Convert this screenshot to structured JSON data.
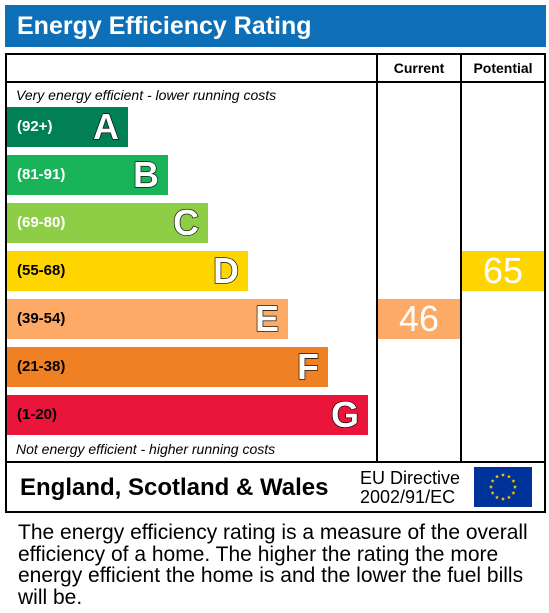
{
  "title": "Energy Efficiency Rating",
  "columns": {
    "current": "Current",
    "potential": "Potential"
  },
  "top_caption": "Very energy efficient - lower running costs",
  "bottom_caption": "Not energy efficient - higher running costs",
  "bands": [
    {
      "range": "(92+)",
      "letter": "A",
      "color": "#008054"
    },
    {
      "range": "(81-91)",
      "letter": "B",
      "color": "#19b459"
    },
    {
      "range": "(69-80)",
      "letter": "C",
      "color": "#8dce46"
    },
    {
      "range": "(55-68)",
      "letter": "D",
      "color": "#ffd500"
    },
    {
      "range": "(39-54)",
      "letter": "E",
      "color": "#fcaa65"
    },
    {
      "range": "(21-38)",
      "letter": "F",
      "color": "#ef8023"
    },
    {
      "range": "(1-20)",
      "letter": "G",
      "color": "#e9153b"
    }
  ],
  "current": {
    "value": "46",
    "band": "E",
    "color": "#fcaa65"
  },
  "potential": {
    "value": "65",
    "band": "D",
    "color": "#ffd500"
  },
  "footer": {
    "region": "England, Scotland & Wales",
    "directive_line1": "EU Directive",
    "directive_line2": "2002/91/EC"
  },
  "description": "The energy efficiency rating is a measure of the overall efficiency of a home. The higher the rating the more energy efficient the home is and the lower the fuel bills will be."
}
